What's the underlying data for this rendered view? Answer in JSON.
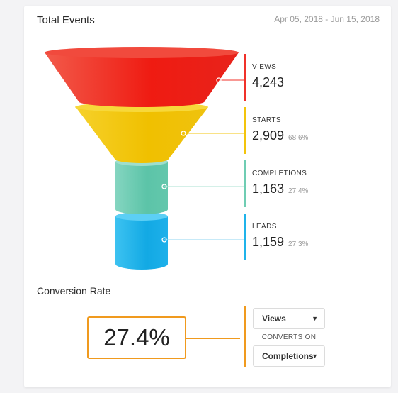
{
  "header": {
    "title": "Total Events",
    "date_range": "Apr 05, 2018 - Jun 15, 2018"
  },
  "funnel": {
    "stages": [
      {
        "label": "VIEWS",
        "value": "4,243",
        "percent": "",
        "color": "#f0312a"
      },
      {
        "label": "STARTS",
        "value": "2,909",
        "percent": "68.6%",
        "color": "#f3c40c"
      },
      {
        "label": "COMPLETIONS",
        "value": "1,163",
        "percent": "27.4%",
        "color": "#6fcdb3"
      },
      {
        "label": "LEADS",
        "value": "1,159",
        "percent": "27.3%",
        "color": "#1fb3ea"
      }
    ]
  },
  "conversion": {
    "title": "Conversion Rate",
    "rate": "27.4%",
    "accent_color": "#f09a1e",
    "from_select": {
      "value": "Views"
    },
    "converts_on_label": "CONVERTS ON",
    "to_select": {
      "value": "Completions"
    }
  }
}
